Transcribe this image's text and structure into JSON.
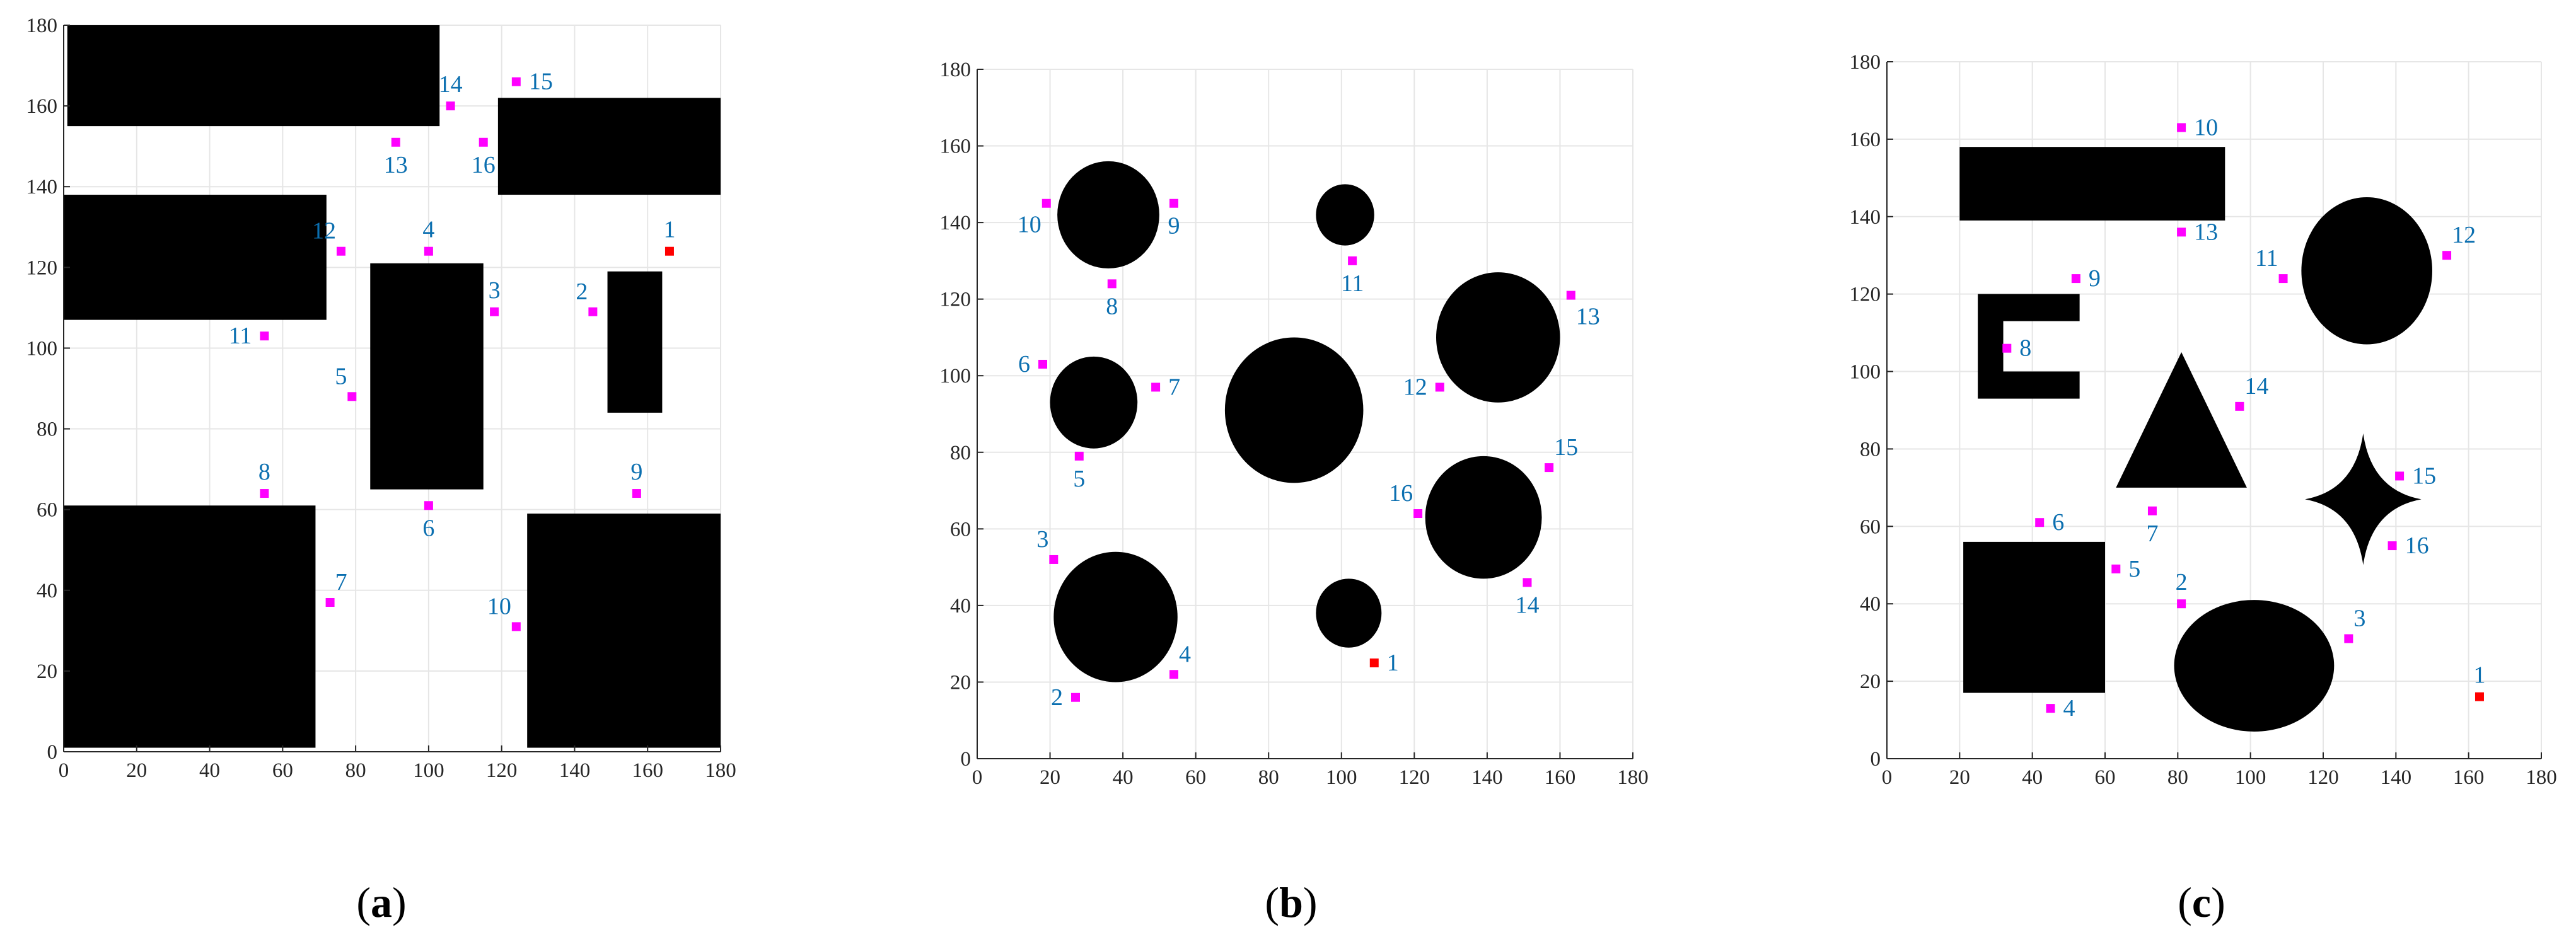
{
  "chart_data": [
    {
      "type": "scatter",
      "panel": "a",
      "xlim": [
        0,
        180
      ],
      "ylim": [
        0,
        180
      ],
      "xticks": [
        0,
        20,
        40,
        60,
        80,
        100,
        120,
        140,
        160,
        180
      ],
      "yticks": [
        0,
        20,
        40,
        60,
        80,
        100,
        120,
        140,
        160,
        180
      ],
      "grid": true,
      "colors": {
        "obstacle": "#000000",
        "waypoint": "#ff00ff",
        "start": "#ff0000",
        "label": "#0b6fb0"
      },
      "obstacles": [
        {
          "shape": "rect",
          "x0": 1,
          "x1": 103,
          "y0": 155,
          "y1": 180
        },
        {
          "shape": "rect",
          "x0": 119,
          "x1": 180,
          "y0": 138,
          "y1": 162
        },
        {
          "shape": "rect",
          "x0": 0,
          "x1": 72,
          "y0": 107,
          "y1": 138
        },
        {
          "shape": "rect",
          "x0": 84,
          "x1": 115,
          "y0": 65,
          "y1": 121
        },
        {
          "shape": "rect",
          "x0": 149,
          "x1": 164,
          "y0": 84,
          "y1": 119
        },
        {
          "shape": "rect",
          "x0": 0,
          "x1": 69,
          "y0": 1,
          "y1": 61
        },
        {
          "shape": "rect",
          "x0": 127,
          "x1": 180,
          "y0": 1,
          "y1": 59
        }
      ],
      "points": [
        {
          "label": "1",
          "x": 166,
          "y": 124,
          "kind": "start",
          "lp": "above"
        },
        {
          "label": "2",
          "x": 145,
          "y": 109,
          "kind": "waypoint",
          "lp": "aboveleft"
        },
        {
          "label": "3",
          "x": 118,
          "y": 109,
          "kind": "waypoint",
          "lp": "above"
        },
        {
          "label": "4",
          "x": 100,
          "y": 124,
          "kind": "waypoint",
          "lp": "above"
        },
        {
          "label": "5",
          "x": 79,
          "y": 88,
          "kind": "waypoint",
          "lp": "aboveleft"
        },
        {
          "label": "6",
          "x": 100,
          "y": 61,
          "kind": "waypoint",
          "lp": "below"
        },
        {
          "label": "7",
          "x": 73,
          "y": 37,
          "kind": "waypoint",
          "lp": "aboveright"
        },
        {
          "label": "8",
          "x": 55,
          "y": 64,
          "kind": "waypoint",
          "lp": "above"
        },
        {
          "label": "9",
          "x": 157,
          "y": 64,
          "kind": "waypoint",
          "lp": "above"
        },
        {
          "label": "10",
          "x": 124,
          "y": 31,
          "kind": "waypoint",
          "lp": "aboveleft"
        },
        {
          "label": "11",
          "x": 55,
          "y": 103,
          "kind": "waypoint",
          "lp": "left"
        },
        {
          "label": "12",
          "x": 76,
          "y": 124,
          "kind": "waypoint",
          "lp": "aboveleft"
        },
        {
          "label": "13",
          "x": 91,
          "y": 151,
          "kind": "waypoint",
          "lp": "below"
        },
        {
          "label": "14",
          "x": 106,
          "y": 160,
          "kind": "waypoint",
          "lp": "above"
        },
        {
          "label": "15",
          "x": 124,
          "y": 166,
          "kind": "waypoint",
          "lp": "right"
        },
        {
          "label": "16",
          "x": 115,
          "y": 151,
          "kind": "waypoint",
          "lp": "below"
        }
      ],
      "caption": "(a)"
    },
    {
      "type": "scatter",
      "panel": "b",
      "xlim": [
        0,
        180
      ],
      "ylim": [
        0,
        180
      ],
      "xticks": [
        0,
        20,
        40,
        60,
        80,
        100,
        120,
        140,
        160,
        180
      ],
      "yticks": [
        0,
        20,
        40,
        60,
        80,
        100,
        120,
        140,
        160,
        180
      ],
      "grid": true,
      "colors": {
        "obstacle": "#000000",
        "waypoint": "#ff00ff",
        "start": "#ff0000",
        "label": "#0b6fb0"
      },
      "obstacles": [
        {
          "shape": "ellipse",
          "cx": 36,
          "cy": 142,
          "rx": 14,
          "ry": 14
        },
        {
          "shape": "ellipse",
          "cx": 101,
          "cy": 142,
          "rx": 8,
          "ry": 8
        },
        {
          "shape": "ellipse",
          "cx": 32,
          "cy": 93,
          "rx": 12,
          "ry": 12
        },
        {
          "shape": "ellipse",
          "cx": 87,
          "cy": 91,
          "rx": 19,
          "ry": 19
        },
        {
          "shape": "ellipse",
          "cx": 143,
          "cy": 110,
          "rx": 17,
          "ry": 17
        },
        {
          "shape": "ellipse",
          "cx": 139,
          "cy": 63,
          "rx": 16,
          "ry": 16
        },
        {
          "shape": "ellipse",
          "cx": 38,
          "cy": 37,
          "rx": 17,
          "ry": 17
        },
        {
          "shape": "ellipse",
          "cx": 102,
          "cy": 38,
          "rx": 9,
          "ry": 9
        }
      ],
      "points": [
        {
          "label": "1",
          "x": 109,
          "y": 25,
          "kind": "start",
          "lp": "right"
        },
        {
          "label": "2",
          "x": 27,
          "y": 16,
          "kind": "waypoint",
          "lp": "left"
        },
        {
          "label": "3",
          "x": 21,
          "y": 52,
          "kind": "waypoint",
          "lp": "aboveleft"
        },
        {
          "label": "4",
          "x": 54,
          "y": 22,
          "kind": "waypoint",
          "lp": "aboveright"
        },
        {
          "label": "5",
          "x": 28,
          "y": 79,
          "kind": "waypoint",
          "lp": "below"
        },
        {
          "label": "6",
          "x": 18,
          "y": 103,
          "kind": "waypoint",
          "lp": "left"
        },
        {
          "label": "7",
          "x": 49,
          "y": 97,
          "kind": "waypoint",
          "lp": "right"
        },
        {
          "label": "8",
          "x": 37,
          "y": 124,
          "kind": "waypoint",
          "lp": "below"
        },
        {
          "label": "9",
          "x": 54,
          "y": 145,
          "kind": "waypoint",
          "lp": "below"
        },
        {
          "label": "10",
          "x": 19,
          "y": 145,
          "kind": "waypoint",
          "lp": "belowleft"
        },
        {
          "label": "11",
          "x": 103,
          "y": 130,
          "kind": "waypoint",
          "lp": "below"
        },
        {
          "label": "12",
          "x": 127,
          "y": 97,
          "kind": "waypoint",
          "lp": "left"
        },
        {
          "label": "13",
          "x": 163,
          "y": 121,
          "kind": "waypoint",
          "lp": "belowright"
        },
        {
          "label": "14",
          "x": 151,
          "y": 46,
          "kind": "waypoint",
          "lp": "below"
        },
        {
          "label": "15",
          "x": 157,
          "y": 76,
          "kind": "waypoint",
          "lp": "aboveright"
        },
        {
          "label": "16",
          "x": 121,
          "y": 64,
          "kind": "waypoint",
          "lp": "aboveleft"
        }
      ],
      "caption": "(b)"
    },
    {
      "type": "scatter",
      "panel": "c",
      "xlim": [
        0,
        180
      ],
      "ylim": [
        0,
        180
      ],
      "xticks": [
        0,
        20,
        40,
        60,
        80,
        100,
        120,
        140,
        160,
        180
      ],
      "yticks": [
        0,
        20,
        40,
        60,
        80,
        100,
        120,
        140,
        160,
        180
      ],
      "grid": true,
      "colors": {
        "obstacle": "#000000",
        "waypoint": "#ff00ff",
        "start": "#ff0000",
        "label": "#0b6fb0"
      },
      "obstacles": [
        {
          "shape": "rect",
          "x0": 20,
          "x1": 93,
          "y0": 139,
          "y1": 158
        },
        {
          "shape": "ellipse",
          "cx": 132,
          "cy": 126,
          "rx": 18,
          "ry": 19
        },
        {
          "shape": "cbracket",
          "x0": 25,
          "x1": 53,
          "y0": 93,
          "y1": 120,
          "t": 7
        },
        {
          "shape": "polygon",
          "points": [
            [
              81,
              105
            ],
            [
              63,
              70
            ],
            [
              99,
              70
            ]
          ]
        },
        {
          "shape": "star4",
          "cx": 131,
          "cy": 67,
          "rx": 16,
          "ry": 17
        },
        {
          "shape": "rect",
          "x0": 21,
          "x1": 60,
          "y0": 17,
          "y1": 56
        },
        {
          "shape": "ellipse",
          "cx": 101,
          "cy": 24,
          "rx": 22,
          "ry": 17
        }
      ],
      "points": [
        {
          "label": "1",
          "x": 163,
          "y": 16,
          "kind": "start",
          "lp": "above"
        },
        {
          "label": "2",
          "x": 81,
          "y": 40,
          "kind": "waypoint",
          "lp": "above"
        },
        {
          "label": "3",
          "x": 127,
          "y": 31,
          "kind": "waypoint",
          "lp": "aboveright"
        },
        {
          "label": "4",
          "x": 45,
          "y": 13,
          "kind": "waypoint",
          "lp": "right"
        },
        {
          "label": "5",
          "x": 63,
          "y": 49,
          "kind": "waypoint",
          "lp": "right"
        },
        {
          "label": "6",
          "x": 42,
          "y": 61,
          "kind": "waypoint",
          "lp": "right"
        },
        {
          "label": "7",
          "x": 73,
          "y": 64,
          "kind": "waypoint",
          "lp": "below"
        },
        {
          "label": "8",
          "x": 33,
          "y": 106,
          "kind": "waypoint",
          "lp": "right"
        },
        {
          "label": "9",
          "x": 52,
          "y": 124,
          "kind": "waypoint",
          "lp": "right"
        },
        {
          "label": "10",
          "x": 81,
          "y": 163,
          "kind": "waypoint",
          "lp": "right"
        },
        {
          "label": "11",
          "x": 109,
          "y": 124,
          "kind": "waypoint",
          "lp": "aboveleft"
        },
        {
          "label": "12",
          "x": 154,
          "y": 130,
          "kind": "waypoint",
          "lp": "aboveright"
        },
        {
          "label": "13",
          "x": 81,
          "y": 136,
          "kind": "waypoint",
          "lp": "right"
        },
        {
          "label": "14",
          "x": 97,
          "y": 91,
          "kind": "waypoint",
          "lp": "aboveright"
        },
        {
          "label": "15",
          "x": 141,
          "y": 73,
          "kind": "waypoint",
          "lp": "right"
        },
        {
          "label": "16",
          "x": 139,
          "y": 55,
          "kind": "waypoint",
          "lp": "right"
        }
      ],
      "caption": "(c)"
    }
  ]
}
